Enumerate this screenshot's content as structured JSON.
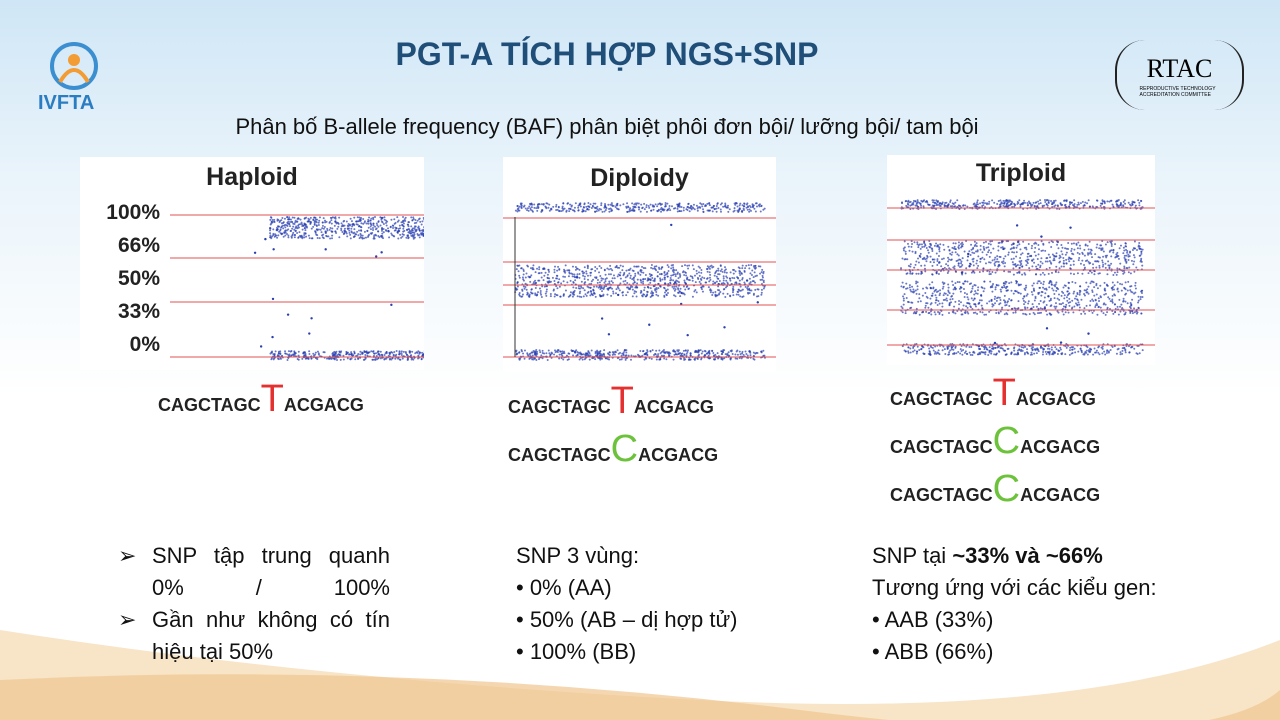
{
  "header": {
    "logo_left": "IVFTA",
    "title": "PGT-A TÍCH HỢP NGS+SNP",
    "logo_right": "RTAC",
    "logo_right_sub": "REPRODUCTIVE TECHNOLOGY ACCREDITATION COMMITTEE"
  },
  "subtitle": "Phân bố B-allele frequency (BAF) phân biệt phôi đơn bội/ lưỡng bội/ tam bội",
  "panels": [
    {
      "title": "Haploid",
      "axis_labels": [
        "100%",
        "66%",
        "50%",
        "33%",
        "0%"
      ],
      "sequences": [
        {
          "left": "CAGCTAGC",
          "base": "T",
          "right": "ACGACG"
        }
      ]
    },
    {
      "title": "Diploidy",
      "sequences": [
        {
          "left": "CAGCTAGC",
          "base": "T",
          "right": "ACGACG"
        },
        {
          "left": "CAGCTAGC",
          "base": "C",
          "right": "ACGACG"
        }
      ]
    },
    {
      "title": "Triploid",
      "sequences": [
        {
          "left": "CAGCTAGC",
          "base": "T",
          "right": "ACGACG"
        },
        {
          "left": "CAGCTAGC",
          "base": "C",
          "right": "ACGACG"
        },
        {
          "left": "CAGCTAGC",
          "base": "C",
          "right": "ACGACG"
        }
      ]
    }
  ],
  "notes": [
    {
      "items": [
        "SNP tập trung quanh 0% / 100%",
        "Gần như không có tín hiệu tại 50%"
      ]
    },
    {
      "lines": [
        "SNP 3 vùng:",
        "• 0% (AA)",
        "• 50% (AB – dị hợp tử)",
        "• 100% (BB)"
      ]
    },
    {
      "lead": "SNP tại ",
      "lead_bold": "~33% và ~66%",
      "lines": [
        "Tương ứng với các kiểu gen:",
        "• AAB (33%)",
        "• ABB (66%)"
      ]
    }
  ]
}
